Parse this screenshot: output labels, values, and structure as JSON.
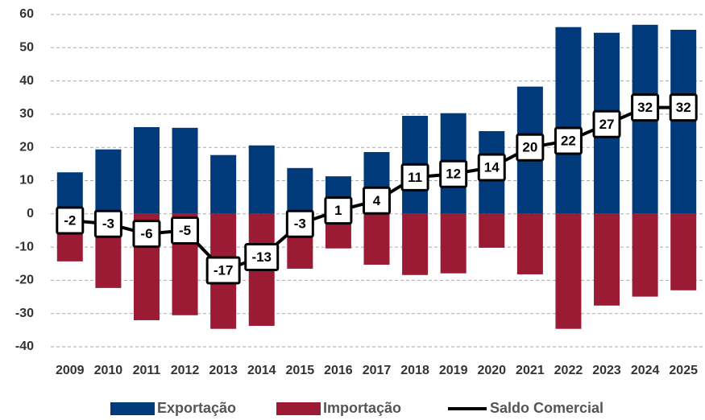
{
  "chart_data": {
    "type": "bar",
    "categories": [
      "2009",
      "2010",
      "2011",
      "2012",
      "2013",
      "2014",
      "2015",
      "2016",
      "2017",
      "2018",
      "2019",
      "2020",
      "2021",
      "2022",
      "2023",
      "2024",
      "2025"
    ],
    "series": [
      {
        "name": "Exportação",
        "color": "#003a7a",
        "values": [
          12.5,
          19.4,
          26.1,
          25.9,
          17.7,
          20.6,
          13.8,
          11.3,
          18.6,
          29.5,
          30.3,
          24.9,
          38.3,
          56.2,
          54.5,
          56.9,
          55.4
        ]
      },
      {
        "name": "Importação",
        "color": "#9b1b34",
        "values": [
          -14.3,
          -22.3,
          -32,
          -30.5,
          -34.6,
          -33.7,
          -16.5,
          -10.4,
          -15.3,
          -18.4,
          -17.9,
          -10.2,
          -18.2,
          -34.6,
          -27.6,
          -24.9,
          -23
        ]
      },
      {
        "name": "Saldo Comercial",
        "color": "#000000",
        "type": "line",
        "values": [
          -2,
          -3,
          -6,
          -5,
          -17,
          -13,
          -3,
          1,
          4,
          11,
          12,
          14,
          20,
          22,
          27,
          32,
          32
        ]
      }
    ],
    "ylim": [
      -40,
      60
    ],
    "yticks": [
      -40,
      -30,
      -20,
      -10,
      0,
      10,
      20,
      30,
      40,
      50,
      60
    ],
    "grid": true,
    "legend": "bottom"
  }
}
